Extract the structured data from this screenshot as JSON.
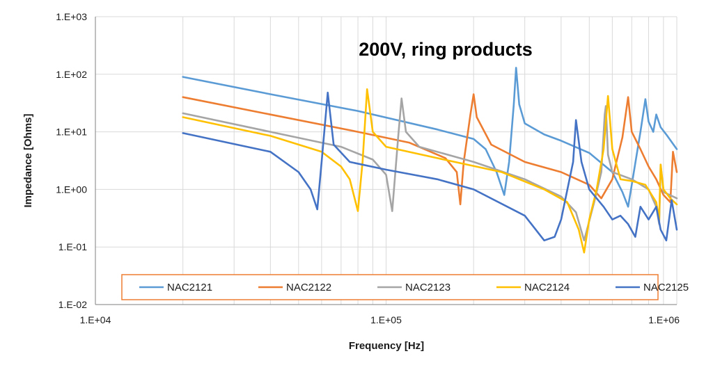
{
  "chart_data": {
    "type": "line",
    "title": "200V, ring products",
    "xlabel": "Frequency [Hz]",
    "ylabel": "Impedance [Ohms]",
    "x_scale": "log",
    "y_scale": "log",
    "xlim": [
      10000,
      1000000
    ],
    "ylim": [
      0.01,
      1000
    ],
    "x_ticks": [
      "1.E+04",
      "1.E+05",
      "1.E+06"
    ],
    "y_ticks": [
      "1.E-02",
      "1.E-01",
      "1.E+00",
      "1.E+01",
      "1.E+02",
      "1.E+03"
    ],
    "grid": "vertical minor and major",
    "legend_position": "bottom-inside",
    "legend_border_color": "#ed7d31",
    "series": [
      {
        "name": "NAC2121",
        "color": "#5b9bd5",
        "points": [
          [
            20000,
            90
          ],
          [
            40000,
            45
          ],
          [
            80000,
            23
          ],
          [
            150000,
            11
          ],
          [
            200000,
            7.5
          ],
          [
            220000,
            5.0
          ],
          [
            240000,
            2.0
          ],
          [
            255000,
            0.8
          ],
          [
            265000,
            3
          ],
          [
            275000,
            30
          ],
          [
            280000,
            130
          ],
          [
            287000,
            30
          ],
          [
            300000,
            14
          ],
          [
            350000,
            9
          ],
          [
            400000,
            7
          ],
          [
            500000,
            4.3
          ],
          [
            600000,
            2.0
          ],
          [
            650000,
            0.9
          ],
          [
            680000,
            0.5
          ],
          [
            700000,
            1.2
          ],
          [
            750000,
            10
          ],
          [
            780000,
            37
          ],
          [
            800000,
            15
          ],
          [
            830000,
            10
          ],
          [
            850000,
            20
          ],
          [
            880000,
            12
          ],
          [
            920000,
            9
          ],
          [
            1000000,
            5
          ]
        ]
      },
      {
        "name": "NAC2122",
        "color": "#ed7d31",
        "points": [
          [
            20000,
            40
          ],
          [
            40000,
            20
          ],
          [
            80000,
            10
          ],
          [
            120000,
            6.5
          ],
          [
            160000,
            3.5
          ],
          [
            175000,
            2.0
          ],
          [
            180000,
            0.55
          ],
          [
            185000,
            3
          ],
          [
            195000,
            20
          ],
          [
            200000,
            45
          ],
          [
            205000,
            18
          ],
          [
            230000,
            6
          ],
          [
            300000,
            3.0
          ],
          [
            400000,
            2.0
          ],
          [
            500000,
            1.2
          ],
          [
            550000,
            0.7
          ],
          [
            600000,
            1.5
          ],
          [
            620000,
            3
          ],
          [
            650000,
            8
          ],
          [
            680000,
            40
          ],
          [
            700000,
            10
          ],
          [
            750000,
            5
          ],
          [
            800000,
            2.5
          ],
          [
            850000,
            1.5
          ],
          [
            900000,
            0.8
          ],
          [
            950000,
            0.6
          ],
          [
            970000,
            4.5
          ],
          [
            1000000,
            2
          ]
        ]
      },
      {
        "name": "NAC2123",
        "color": "#a5a5a5",
        "points": [
          [
            20000,
            21
          ],
          [
            40000,
            10
          ],
          [
            70000,
            5.5
          ],
          [
            90000,
            3.3
          ],
          [
            100000,
            1.8
          ],
          [
            105000,
            0.42
          ],
          [
            110000,
            8
          ],
          [
            113000,
            38
          ],
          [
            117000,
            10
          ],
          [
            130000,
            5.5
          ],
          [
            200000,
            3.0
          ],
          [
            300000,
            1.5
          ],
          [
            400000,
            0.75
          ],
          [
            450000,
            0.4
          ],
          [
            480000,
            0.13
          ],
          [
            520000,
            0.6
          ],
          [
            550000,
            2
          ],
          [
            565000,
            20
          ],
          [
            570000,
            28
          ],
          [
            580000,
            4
          ],
          [
            600000,
            2
          ],
          [
            700000,
            1.5
          ],
          [
            800000,
            1.0
          ],
          [
            850000,
            0.5
          ],
          [
            870000,
            0.25
          ],
          [
            880000,
            2.7
          ],
          [
            900000,
            0.9
          ],
          [
            1000000,
            0.7
          ]
        ]
      },
      {
        "name": "NAC2124",
        "color": "#ffc000",
        "points": [
          [
            20000,
            18
          ],
          [
            40000,
            8.5
          ],
          [
            60000,
            4.5
          ],
          [
            70000,
            2.5
          ],
          [
            75000,
            1.5
          ],
          [
            80000,
            0.42
          ],
          [
            83000,
            3
          ],
          [
            86000,
            55
          ],
          [
            90000,
            10
          ],
          [
            100000,
            5.5
          ],
          [
            150000,
            3.5
          ],
          [
            250000,
            2.0
          ],
          [
            350000,
            1.0
          ],
          [
            420000,
            0.6
          ],
          [
            460000,
            0.2
          ],
          [
            480000,
            0.08
          ],
          [
            500000,
            0.3
          ],
          [
            530000,
            1
          ],
          [
            560000,
            5
          ],
          [
            580000,
            42
          ],
          [
            600000,
            5
          ],
          [
            640000,
            1.5
          ],
          [
            700000,
            1.4
          ],
          [
            780000,
            1.2
          ],
          [
            850000,
            0.6
          ],
          [
            870000,
            0.3
          ],
          [
            880000,
            2.7
          ],
          [
            900000,
            1
          ],
          [
            950000,
            0.7
          ],
          [
            1000000,
            0.55
          ]
        ]
      },
      {
        "name": "NAC2125",
        "color": "#4472c4",
        "points": [
          [
            20000,
            9.5
          ],
          [
            40000,
            4.5
          ],
          [
            50000,
            2.0
          ],
          [
            55000,
            1.0
          ],
          [
            58000,
            0.45
          ],
          [
            60000,
            3
          ],
          [
            63000,
            48
          ],
          [
            66000,
            6
          ],
          [
            75000,
            3.0
          ],
          [
            100000,
            2.2
          ],
          [
            150000,
            1.5
          ],
          [
            200000,
            1.0
          ],
          [
            300000,
            0.35
          ],
          [
            350000,
            0.13
          ],
          [
            380000,
            0.15
          ],
          [
            400000,
            0.3
          ],
          [
            440000,
            3
          ],
          [
            450000,
            16
          ],
          [
            470000,
            3
          ],
          [
            500000,
            1
          ],
          [
            560000,
            0.5
          ],
          [
            600000,
            0.3
          ],
          [
            640000,
            0.35
          ],
          [
            680000,
            0.25
          ],
          [
            720000,
            0.15
          ],
          [
            750000,
            0.5
          ],
          [
            800000,
            0.3
          ],
          [
            850000,
            0.5
          ],
          [
            880000,
            0.2
          ],
          [
            920000,
            0.13
          ],
          [
            960000,
            0.65
          ],
          [
            1000000,
            0.2
          ]
        ]
      }
    ]
  }
}
